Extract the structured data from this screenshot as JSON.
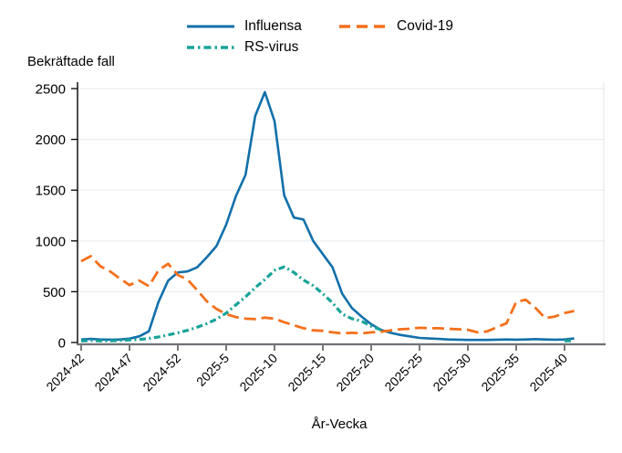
{
  "chart_data": {
    "type": "line",
    "title": "",
    "xlabel": "År-Vecka",
    "ylabel": "Bekräftade fall",
    "ylim": [
      0,
      2500
    ],
    "y_ticks": [
      0,
      500,
      1000,
      1500,
      2000,
      2500
    ],
    "grid": "horizontal",
    "legend_position": "top",
    "x": [
      "2024-42",
      "2024-43",
      "2024-44",
      "2024-45",
      "2024-46",
      "2024-47",
      "2024-48",
      "2024-49",
      "2024-50",
      "2024-51",
      "2024-52",
      "2025-1",
      "2025-2",
      "2025-3",
      "2025-4",
      "2025-5",
      "2025-6",
      "2025-7",
      "2025-8",
      "2025-9",
      "2025-10",
      "2025-11",
      "2025-12",
      "2025-13",
      "2025-14",
      "2025-15",
      "2025-16",
      "2025-17",
      "2025-18",
      "2025-19",
      "2025-20",
      "2025-21",
      "2025-22",
      "2025-23",
      "2025-24",
      "2025-25",
      "2025-26",
      "2025-27",
      "2025-28",
      "2025-29",
      "2025-30",
      "2025-31",
      "2025-32",
      "2025-33",
      "2025-34",
      "2025-35",
      "2025-36",
      "2025-37",
      "2025-38",
      "2025-39",
      "2025-40",
      "2025-41"
    ],
    "x_tick_labels": [
      "2024-42",
      "2024-47",
      "2024-52",
      "2025-5",
      "2025-10",
      "2025-15",
      "2025-20",
      "2025-25",
      "2025-30",
      "2025-35",
      "2025-40"
    ],
    "x_tick_indices": [
      0,
      5,
      10,
      15,
      20,
      25,
      30,
      35,
      40,
      45,
      50
    ],
    "series": [
      {
        "name": "Influensa",
        "color": "#1170aa",
        "dash": "solid",
        "values": [
          30,
          35,
          30,
          28,
          30,
          38,
          60,
          110,
          400,
          610,
          690,
          700,
          740,
          840,
          950,
          1160,
          1440,
          1650,
          2230,
          2465,
          2180,
          1450,
          1230,
          1210,
          1000,
          870,
          740,
          480,
          340,
          255,
          180,
          125,
          95,
          75,
          60,
          45,
          40,
          35,
          30,
          28,
          25,
          25,
          25,
          28,
          30,
          28,
          30,
          33,
          30,
          28,
          30,
          40
        ]
      },
      {
        "name": "Covid-19",
        "color": "#f4701b",
        "dash": "long-dash",
        "values": [
          800,
          850,
          750,
          700,
          630,
          565,
          610,
          555,
          710,
          775,
          665,
          620,
          515,
          405,
          330,
          280,
          250,
          235,
          230,
          245,
          235,
          200,
          170,
          140,
          120,
          115,
          100,
          90,
          95,
          90,
          100,
          105,
          120,
          130,
          135,
          145,
          140,
          140,
          135,
          130,
          125,
          100,
          110,
          150,
          190,
          400,
          420,
          340,
          240,
          255,
          290,
          310
        ]
      },
      {
        "name": "RS-virus",
        "color": "#17a298",
        "dash": "dash-dot",
        "values": [
          15,
          20,
          15,
          15,
          20,
          25,
          30,
          40,
          55,
          75,
          95,
          120,
          150,
          185,
          230,
          290,
          370,
          450,
          540,
          620,
          710,
          745,
          690,
          615,
          560,
          480,
          390,
          280,
          235,
          210,
          160,
          125,
          null,
          null,
          null,
          null,
          null,
          null,
          null,
          null,
          null,
          null,
          null,
          null,
          null,
          null,
          null,
          null,
          null,
          null,
          15,
          20
        ]
      }
    ]
  },
  "colors": {
    "grid": "#e9eef0",
    "y_axis_line": "#000000",
    "x_axis_line": "#6e7276",
    "right_border": "#e0e6e8",
    "tick": "#333333"
  }
}
